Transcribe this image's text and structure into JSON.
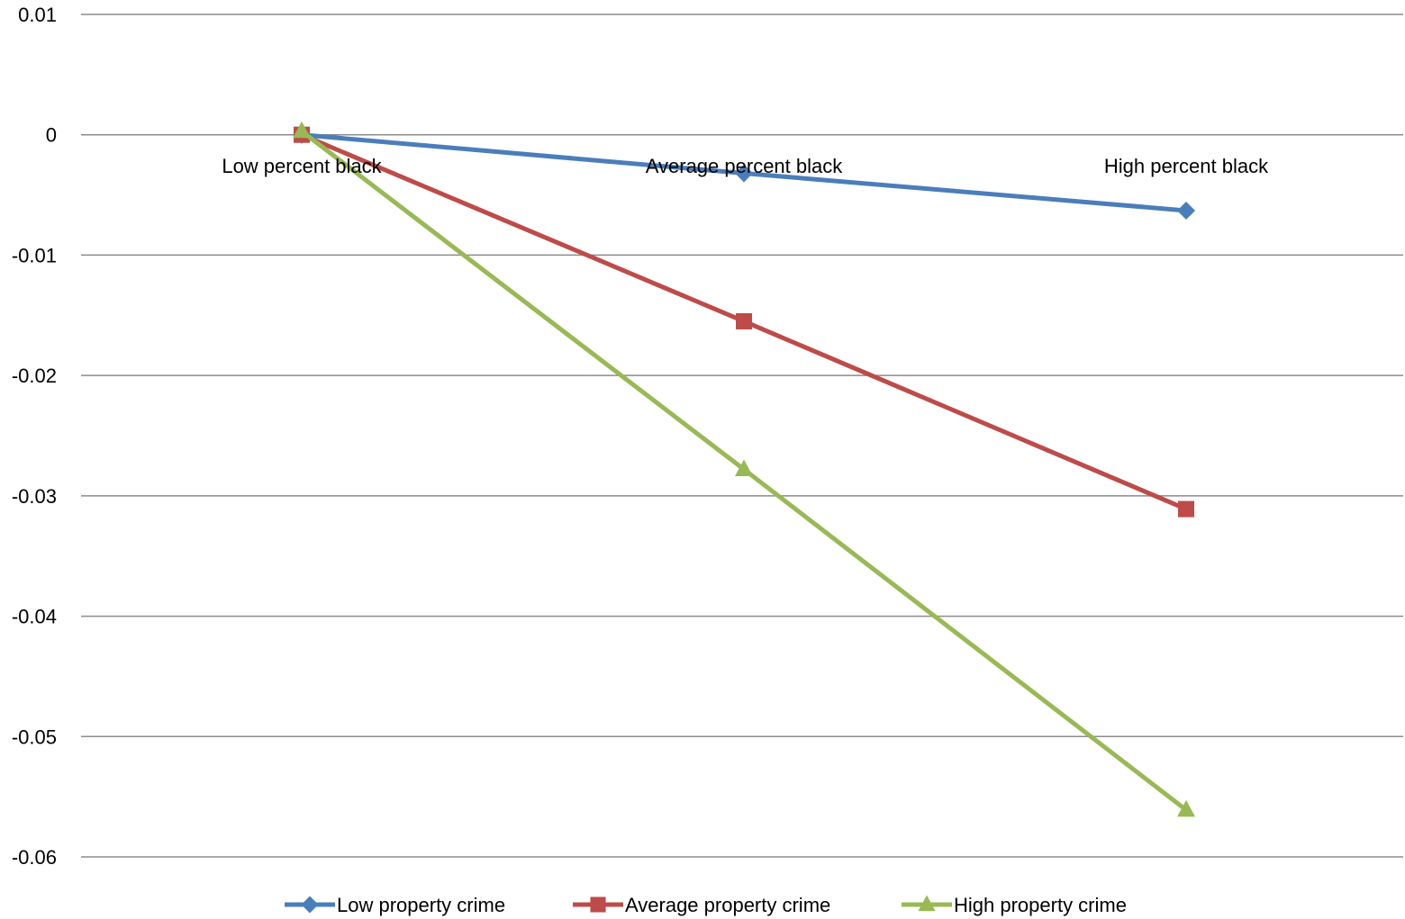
{
  "chart_data": {
    "type": "line",
    "title": "",
    "xlabel": "",
    "ylabel": "",
    "categories": [
      "Low percent black",
      "Average percent black",
      "High percent black"
    ],
    "ylim": [
      -0.06,
      0.01
    ],
    "yticks": [
      "0.01",
      "0",
      "-0.01",
      "-0.02",
      "-0.03",
      "-0.04",
      "-0.05",
      "-0.06"
    ],
    "ytick_values": [
      0.01,
      0,
      -0.01,
      -0.02,
      -0.03,
      -0.04,
      -0.05,
      -0.06
    ],
    "grid": "horizontal",
    "legend_position": "bottom",
    "series": [
      {
        "name": "Low property crime",
        "values": [
          0,
          -0.0032,
          -0.0063
        ],
        "color": "#4A7EBB",
        "marker": "diamond"
      },
      {
        "name": "Average property crime",
        "values": [
          0,
          -0.0155,
          -0.0311
        ],
        "color": "#BE4B48",
        "marker": "square"
      },
      {
        "name": "High property crime",
        "values": [
          0.0003,
          -0.0278,
          -0.0561
        ],
        "color": "#98B954",
        "marker": "triangle"
      }
    ]
  }
}
